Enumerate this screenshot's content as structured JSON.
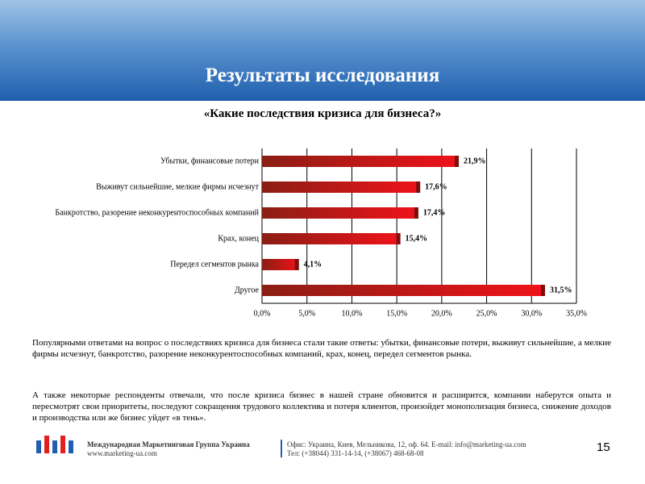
{
  "header": {
    "title": "Результаты исследования"
  },
  "chart_data": {
    "type": "bar",
    "orientation": "horizontal",
    "title": "«Какие последствия кризиса для бизнеса?»",
    "categories": [
      "Убытки, финансовые потери",
      "Выживут сильнейшие, мелкие фирмы исчезнут",
      "Банкротство, разорение неконкурентоспособных компаний",
      "Крах, конец",
      "Передел сегментов рынка",
      "Другое"
    ],
    "values": [
      21.9,
      17.6,
      17.4,
      15.4,
      4.1,
      31.5
    ],
    "value_labels": [
      "21,9%",
      "17,6%",
      "17,4%",
      "15,4%",
      "4,1%",
      "31,5%"
    ],
    "color": "#f0121a",
    "xlim": [
      0,
      35
    ],
    "xticks": [
      {
        "value": 0,
        "label": "0,0%"
      },
      {
        "value": 5,
        "label": "5,0%"
      },
      {
        "value": 10,
        "label": "10,0%"
      },
      {
        "value": 15,
        "label": "15,0%"
      },
      {
        "value": 20,
        "label": "20,0%"
      },
      {
        "value": 25,
        "label": "25,0%"
      },
      {
        "value": 30,
        "label": "30,0%"
      },
      {
        "value": 35,
        "label": "35,0%"
      }
    ],
    "grid": true
  },
  "paragraphs": [
    "Популярными ответами на вопрос о последствиях кризиса для бизнеса стали такие ответы: убытки, финансовые потери, выживут сильнейшие, а мелкие фирмы исчезнут, банкротство, разорение неконкурентоспособных компаний, крах, конец, передел сегментов рынка.",
    "А также некоторые респонденты отвечали, что после кризиса бизнес в нашей стране обновится и расширится, компании наберутся опыта и пересмотрят свои приоритеты, последуют сокращения трудового коллектива и потеря клиентов, произойдет монополизация бизнеса, снижение доходов и производства или же бизнес уйдет «в тень»."
  ],
  "footer": {
    "company": "Международная Маркетинговая Группа Украина",
    "site": "www.marketing-ua.com",
    "office": "Офис: Украина, Киев, Мельникова, 12, оф. 64. E-mail: info@marketing-ua.com",
    "phone": "Тел: (+38044) 331-14-14, (+38067) 468-68-08",
    "page": "15"
  }
}
